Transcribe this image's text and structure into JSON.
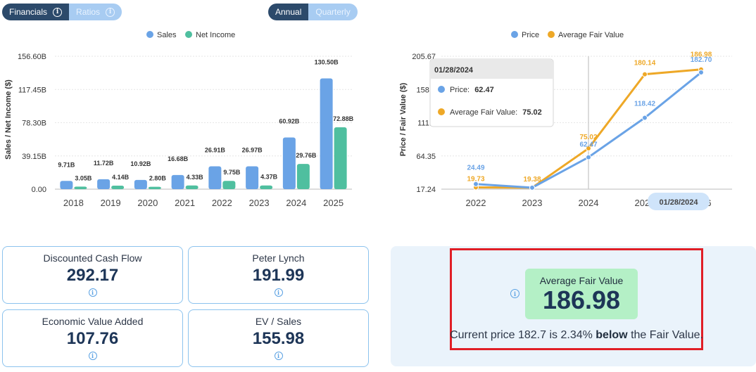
{
  "toggles": {
    "statement": [
      {
        "label": "Financials",
        "active": true
      },
      {
        "label": "Ratios",
        "active": false
      }
    ],
    "period": [
      {
        "label": "Annual",
        "active": true
      },
      {
        "label": "Quarterly",
        "active": false
      }
    ]
  },
  "colors": {
    "sales": "#6aa3e6",
    "net_income": "#4fbf9f",
    "price": "#6aa3e6",
    "fair_value": "#eea827",
    "card_border": "#8cc3ee",
    "highlight_border": "#e01e26",
    "badge_bg": "#b4f0c6"
  },
  "chart_data": [
    {
      "type": "bar",
      "legend": [
        "Sales",
        "Net Income"
      ],
      "legend_position": "top",
      "ylabel": "Sales / Net Income ($)",
      "yticks": [
        "0.00",
        "39.15B",
        "78.30B",
        "117.45B",
        "156.60B"
      ],
      "ylim": [
        0,
        156.6
      ],
      "categories": [
        "2018",
        "2019",
        "2020",
        "2021",
        "2022",
        "2023",
        "2024",
        "2025"
      ],
      "series": [
        {
          "name": "Sales",
          "values": [
            9.71,
            11.72,
            10.92,
            16.68,
            26.91,
            26.97,
            60.92,
            130.5
          ],
          "labels": [
            "9.71B",
            "11.72B",
            "10.92B",
            "16.68B",
            "26.91B",
            "26.97B",
            "60.92B",
            "130.50B"
          ]
        },
        {
          "name": "Net Income",
          "values": [
            3.05,
            4.14,
            2.8,
            4.33,
            9.75,
            4.37,
            29.76,
            72.88
          ],
          "labels": [
            "3.05B",
            "4.14B",
            "2.80B",
            "4.33B",
            "9.75B",
            "4.37B",
            "29.76B",
            "72.88B"
          ]
        }
      ]
    },
    {
      "type": "line",
      "legend": [
        "Price",
        "Average Fair Value"
      ],
      "legend_position": "top",
      "ylabel": "Price / Fair Value ($)",
      "yticks": [
        "17.24",
        "64.35",
        "111.4",
        "158.5",
        "205.67"
      ],
      "ylim": [
        17.24,
        205.67
      ],
      "xticks": [
        "2022",
        "2023",
        "2024",
        "2025",
        "2026"
      ],
      "series": [
        {
          "name": "Price",
          "x": [
            2022,
            2023,
            2024,
            2025,
            2026
          ],
          "values": [
            24.49,
            19.38,
            62.47,
            118.42,
            182.7
          ],
          "labels": [
            "24.49",
            "",
            "62.47",
            "118.42",
            "182.70"
          ]
        },
        {
          "name": "Average Fair Value",
          "x": [
            2022,
            2023,
            2024,
            2025,
            2026
          ],
          "values": [
            19.73,
            19.38,
            75.02,
            180.14,
            186.98
          ],
          "labels": [
            "19.73",
            "19.38",
            "75.02",
            "180.14",
            "186.98"
          ]
        }
      ],
      "tooltip": {
        "date": "01/28/2024",
        "rows": [
          {
            "label": "Price:",
            "value": "62.47"
          },
          {
            "label": "Average Fair Value:",
            "value": "75.02"
          }
        ]
      },
      "crosshair_label": "01/28/2024"
    }
  ],
  "cards": [
    {
      "label": "Discounted Cash Flow",
      "value": "292.17"
    },
    {
      "label": "Peter Lynch",
      "value": "191.99"
    },
    {
      "label": "Economic Value Added",
      "value": "107.76"
    },
    {
      "label": "EV / Sales",
      "value": "155.98"
    }
  ],
  "fair_value": {
    "title": "Average Fair Value",
    "value": "186.98",
    "note_prefix": "Current price 182.7 is 2.34% ",
    "note_bold": "below",
    "note_suffix": " the Fair Value."
  }
}
